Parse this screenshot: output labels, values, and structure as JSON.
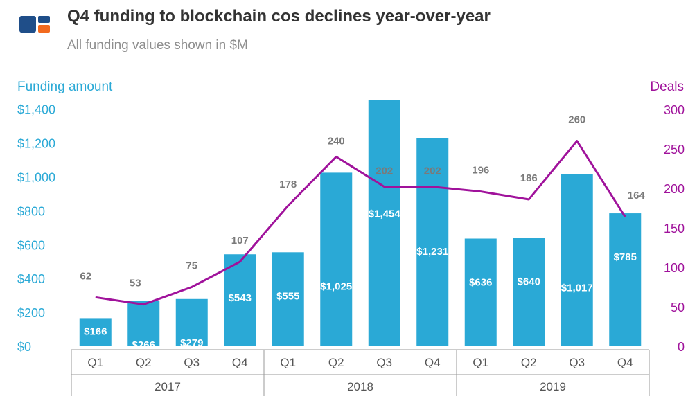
{
  "header": {
    "title": "Q4 funding to blockchain cos declines year-over-year",
    "subtitle": "All funding values shown in $M"
  },
  "colors": {
    "bar": "#2aa9d6",
    "line": "#a0129b",
    "logo_blue": "#1f4e89",
    "logo_orange": "#f26a1f"
  },
  "chart_data": {
    "type": "bar",
    "title": "Q4 funding to blockchain cos declines year-over-year",
    "subtitle": "All funding values shown in $M",
    "ylabel": "Funding amount",
    "y2label": "Deals",
    "categories": [
      "Q1",
      "Q2",
      "Q3",
      "Q4",
      "Q1",
      "Q2",
      "Q3",
      "Q4",
      "Q1",
      "Q2",
      "Q3",
      "Q4"
    ],
    "groups": [
      {
        "label": "2017",
        "count": 4
      },
      {
        "label": "2018",
        "count": 4
      },
      {
        "label": "2019",
        "count": 4
      }
    ],
    "series": [
      {
        "name": "Funding amount",
        "type": "bar",
        "axis": "left",
        "values": [
          166,
          266,
          279,
          543,
          555,
          1025,
          1454,
          1231,
          636,
          640,
          1017,
          785
        ],
        "labels": [
          "$166",
          "$266",
          "$279",
          "$543",
          "$555",
          "$1,025",
          "$1,454",
          "$1,231",
          "$636",
          "$640",
          "$1,017",
          "$785"
        ]
      },
      {
        "name": "Deals",
        "type": "line",
        "axis": "right",
        "values": [
          62,
          53,
          75,
          107,
          178,
          240,
          202,
          202,
          196,
          186,
          260,
          164
        ],
        "labels": [
          "62",
          "53",
          "75",
          "107",
          "178",
          "240",
          "202",
          "202",
          "196",
          "186",
          "260",
          "164"
        ]
      }
    ],
    "ylim": [
      0,
      1400
    ],
    "y_ticks": [
      "$0",
      "$200",
      "$400",
      "$600",
      "$800",
      "$1,000",
      "$1,200",
      "$1,400"
    ],
    "y2lim": [
      0,
      300
    ],
    "y2_ticks": [
      "0",
      "50",
      "100",
      "150",
      "200",
      "250",
      "300"
    ],
    "grid": false,
    "legend": "none"
  }
}
